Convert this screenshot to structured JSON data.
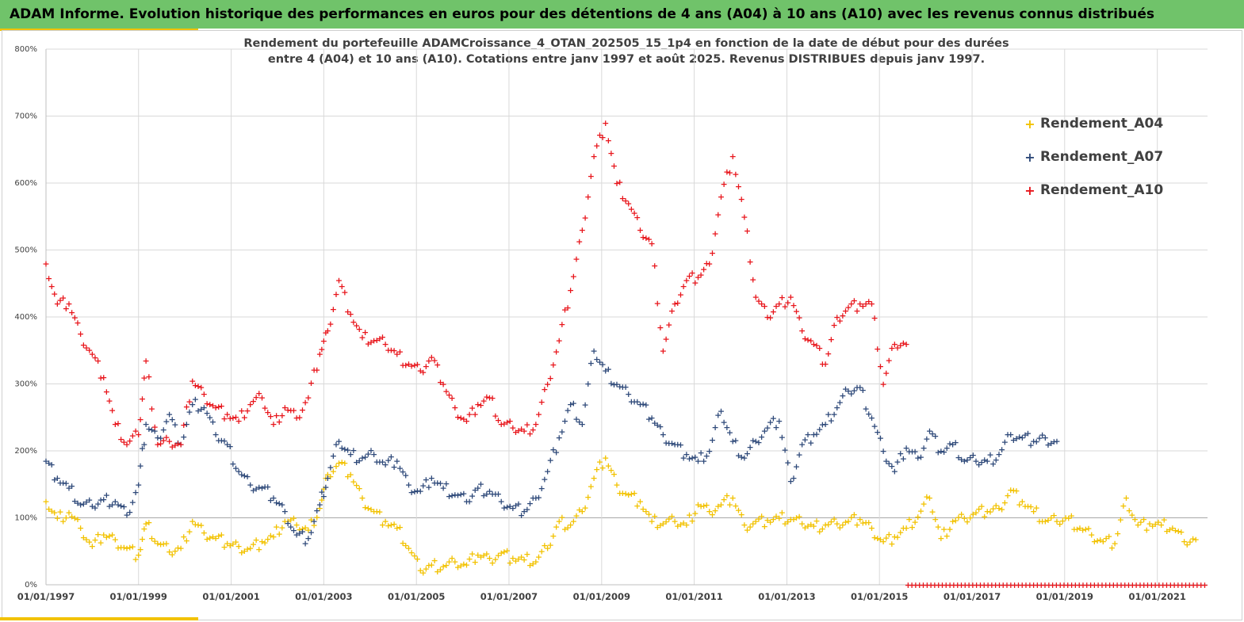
{
  "header": {
    "banner": "ADAM Informe. Evolution historique des performances en euros pour des détentions de 4 ans (A04) à 10 ans (A10) avec les revenus connus distribués"
  },
  "chart_data": {
    "type": "scatter",
    "title_line1": "Rendement du portefeuille ADAMCroissance_4_OTAN_202505_15_1p4  en fonction de la date de début pour des durées",
    "title_line2": "entre 4 (A04) et 10 ans (A10). Cotations entre janv 1997 et août 2025. Revenus DISTRIBUES depuis janv 1997.",
    "xlabel": "",
    "ylabel": "",
    "x_range": [
      "1997-01-01",
      "2022-02-01"
    ],
    "ylim": [
      0,
      800
    ],
    "y_ticks": [
      "0%",
      "100%",
      "200%",
      "300%",
      "400%",
      "500%",
      "600%",
      "700%",
      "800%"
    ],
    "x_ticks": [
      "01/01/1997",
      "01/01/1999",
      "01/01/2001",
      "01/01/2003",
      "01/01/2005",
      "01/01/2007",
      "01/01/2009",
      "01/01/2011",
      "01/01/2013",
      "01/01/2015",
      "01/01/2017",
      "01/01/2019",
      "01/01/2021"
    ],
    "grid": true,
    "legend_position": "right",
    "series": [
      {
        "name": "Rendement_A04",
        "color": "#f2c200",
        "points": [
          [
            "1997-01",
            125
          ],
          [
            "1997-04",
            100
          ],
          [
            "1997-07",
            108
          ],
          [
            "1997-10",
            85
          ],
          [
            "1998-01",
            58
          ],
          [
            "1998-04",
            75
          ],
          [
            "1998-07",
            68
          ],
          [
            "1998-10",
            55
          ],
          [
            "1999-01",
            45
          ],
          [
            "1999-03",
            92
          ],
          [
            "1999-06",
            62
          ],
          [
            "1999-09",
            50
          ],
          [
            "1999-12",
            55
          ],
          [
            "2000-03",
            95
          ],
          [
            "2000-06",
            78
          ],
          [
            "2000-09",
            70
          ],
          [
            "2000-12",
            62
          ],
          [
            "2001-03",
            58
          ],
          [
            "2001-06",
            55
          ],
          [
            "2001-09",
            65
          ],
          [
            "2001-12",
            72
          ],
          [
            "2002-03",
            95
          ],
          [
            "2002-06",
            90
          ],
          [
            "2002-09",
            82
          ],
          [
            "2002-12",
            115
          ],
          [
            "2003-02",
            165
          ],
          [
            "2003-05",
            182
          ],
          [
            "2003-08",
            165
          ],
          [
            "2003-11",
            130
          ],
          [
            "2004-02",
            110
          ],
          [
            "2004-05",
            95
          ],
          [
            "2004-08",
            85
          ],
          [
            "2004-11",
            55
          ],
          [
            "2005-02",
            22
          ],
          [
            "2005-05",
            30
          ],
          [
            "2005-08",
            28
          ],
          [
            "2005-11",
            35
          ],
          [
            "2006-02",
            30
          ],
          [
            "2006-05",
            45
          ],
          [
            "2006-08",
            40
          ],
          [
            "2006-11",
            48
          ],
          [
            "2007-02",
            40
          ],
          [
            "2007-05",
            38
          ],
          [
            "2007-08",
            35
          ],
          [
            "2007-11",
            55
          ],
          [
            "2008-02",
            95
          ],
          [
            "2008-05",
            90
          ],
          [
            "2008-08",
            110
          ],
          [
            "2008-11",
            160
          ],
          [
            "2009-02",
            190
          ],
          [
            "2009-05",
            150
          ],
          [
            "2009-08",
            135
          ],
          [
            "2009-11",
            125
          ],
          [
            "2010-02",
            95
          ],
          [
            "2010-05",
            92
          ],
          [
            "2010-08",
            95
          ],
          [
            "2010-11",
            90
          ],
          [
            "2011-02",
            120
          ],
          [
            "2011-05",
            110
          ],
          [
            "2011-08",
            120
          ],
          [
            "2011-11",
            130
          ],
          [
            "2012-02",
            90
          ],
          [
            "2012-05",
            95
          ],
          [
            "2012-08",
            97
          ],
          [
            "2012-11",
            100
          ],
          [
            "2013-02",
            98
          ],
          [
            "2013-05",
            92
          ],
          [
            "2013-08",
            88
          ],
          [
            "2013-11",
            90
          ],
          [
            "2014-02",
            92
          ],
          [
            "2014-05",
            95
          ],
          [
            "2014-08",
            98
          ],
          [
            "2014-11",
            85
          ],
          [
            "2015-02",
            65
          ],
          [
            "2015-05",
            72
          ],
          [
            "2015-08",
            85
          ],
          [
            "2015-11",
            102
          ],
          [
            "2016-02",
            130
          ],
          [
            "2016-05",
            70
          ],
          [
            "2016-08",
            95
          ],
          [
            "2016-11",
            100
          ],
          [
            "2017-02",
            108
          ],
          [
            "2017-05",
            110
          ],
          [
            "2017-08",
            115
          ],
          [
            "2017-11",
            142
          ],
          [
            "2018-02",
            125
          ],
          [
            "2018-05",
            110
          ],
          [
            "2018-08",
            95
          ],
          [
            "2018-11",
            95
          ],
          [
            "2019-02",
            100
          ],
          [
            "2019-05",
            85
          ],
          [
            "2019-08",
            75
          ],
          [
            "2019-11",
            65
          ],
          [
            "2020-02",
            62
          ],
          [
            "2020-05",
            130
          ],
          [
            "2020-08",
            90
          ],
          [
            "2020-11",
            92
          ],
          [
            "2021-02",
            90
          ],
          [
            "2021-05",
            85
          ],
          [
            "2021-08",
            65
          ],
          [
            "2021-11",
            68
          ]
        ]
      },
      {
        "name": "Rendement_A07",
        "color": "#2f4a7a",
        "points": [
          [
            "1997-01",
            185
          ],
          [
            "1997-04",
            160
          ],
          [
            "1997-07",
            145
          ],
          [
            "1997-10",
            120
          ],
          [
            "1998-01",
            118
          ],
          [
            "1998-04",
            128
          ],
          [
            "1998-07",
            125
          ],
          [
            "1998-10",
            105
          ],
          [
            "1999-01",
            150
          ],
          [
            "1999-03",
            240
          ],
          [
            "1999-06",
            220
          ],
          [
            "1999-09",
            255
          ],
          [
            "1999-12",
            210
          ],
          [
            "2000-03",
            270
          ],
          [
            "2000-06",
            265
          ],
          [
            "2000-09",
            225
          ],
          [
            "2000-12",
            210
          ],
          [
            "2001-03",
            170
          ],
          [
            "2001-06",
            150
          ],
          [
            "2001-09",
            145
          ],
          [
            "2001-12",
            130
          ],
          [
            "2002-03",
            110
          ],
          [
            "2002-06",
            75
          ],
          [
            "2002-09",
            70
          ],
          [
            "2002-12",
            120
          ],
          [
            "2003-02",
            160
          ],
          [
            "2003-05",
            215
          ],
          [
            "2003-08",
            195
          ],
          [
            "2003-11",
            190
          ],
          [
            "2004-02",
            195
          ],
          [
            "2004-05",
            180
          ],
          [
            "2004-08",
            185
          ],
          [
            "2004-11",
            150
          ],
          [
            "2005-02",
            140
          ],
          [
            "2005-05",
            160
          ],
          [
            "2005-08",
            145
          ],
          [
            "2005-11",
            135
          ],
          [
            "2006-02",
            125
          ],
          [
            "2006-05",
            145
          ],
          [
            "2006-08",
            140
          ],
          [
            "2006-11",
            125
          ],
          [
            "2007-02",
            115
          ],
          [
            "2007-05",
            110
          ],
          [
            "2007-08",
            130
          ],
          [
            "2007-11",
            170
          ],
          [
            "2008-02",
            220
          ],
          [
            "2008-05",
            270
          ],
          [
            "2008-08",
            240
          ],
          [
            "2008-11",
            350
          ],
          [
            "2009-02",
            320
          ],
          [
            "2009-05",
            300
          ],
          [
            "2009-08",
            285
          ],
          [
            "2009-11",
            270
          ],
          [
            "2010-02",
            250
          ],
          [
            "2010-05",
            225
          ],
          [
            "2010-08",
            210
          ],
          [
            "2010-11",
            195
          ],
          [
            "2011-02",
            185
          ],
          [
            "2011-05",
            200
          ],
          [
            "2011-08",
            260
          ],
          [
            "2011-11",
            215
          ],
          [
            "2012-02",
            190
          ],
          [
            "2012-05",
            215
          ],
          [
            "2012-08",
            235
          ],
          [
            "2012-11",
            245
          ],
          [
            "2013-02",
            155
          ],
          [
            "2013-05",
            210
          ],
          [
            "2013-08",
            225
          ],
          [
            "2013-11",
            240
          ],
          [
            "2014-02",
            265
          ],
          [
            "2014-05",
            290
          ],
          [
            "2014-08",
            295
          ],
          [
            "2014-11",
            250
          ],
          [
            "2015-02",
            200
          ],
          [
            "2015-05",
            170
          ],
          [
            "2015-08",
            205
          ],
          [
            "2015-11",
            190
          ],
          [
            "2016-02",
            230
          ],
          [
            "2016-05",
            200
          ],
          [
            "2016-08",
            210
          ],
          [
            "2016-11",
            185
          ],
          [
            "2017-02",
            185
          ],
          [
            "2017-05",
            185
          ],
          [
            "2017-08",
            195
          ],
          [
            "2017-11",
            225
          ],
          [
            "2018-02",
            220
          ],
          [
            "2018-05",
            215
          ],
          [
            "2018-08",
            220
          ],
          [
            "2018-11",
            215
          ]
        ]
      },
      {
        "name": "Rendement_A10",
        "color": "#e8161c",
        "points": [
          [
            "1997-01",
            480
          ],
          [
            "1997-04",
            420
          ],
          [
            "1997-07",
            420
          ],
          [
            "1997-10",
            375
          ],
          [
            "1998-01",
            345
          ],
          [
            "1998-04",
            310
          ],
          [
            "1998-07",
            240
          ],
          [
            "1998-10",
            210
          ],
          [
            "1999-01",
            225
          ],
          [
            "1999-03",
            335
          ],
          [
            "1999-06",
            210
          ],
          [
            "1999-09",
            215
          ],
          [
            "1999-12",
            210
          ],
          [
            "2000-03",
            305
          ],
          [
            "2000-06",
            285
          ],
          [
            "2000-09",
            265
          ],
          [
            "2000-12",
            255
          ],
          [
            "2001-03",
            245
          ],
          [
            "2001-06",
            270
          ],
          [
            "2001-09",
            280
          ],
          [
            "2001-12",
            240
          ],
          [
            "2002-03",
            265
          ],
          [
            "2002-06",
            250
          ],
          [
            "2002-09",
            280
          ],
          [
            "2002-12",
            345
          ],
          [
            "2003-02",
            380
          ],
          [
            "2003-05",
            455
          ],
          [
            "2003-08",
            405
          ],
          [
            "2003-11",
            370
          ],
          [
            "2004-02",
            365
          ],
          [
            "2004-05",
            360
          ],
          [
            "2004-08",
            345
          ],
          [
            "2004-11",
            330
          ],
          [
            "2005-02",
            320
          ],
          [
            "2005-05",
            340
          ],
          [
            "2005-08",
            300
          ],
          [
            "2005-11",
            265
          ],
          [
            "2006-02",
            245
          ],
          [
            "2006-05",
            270
          ],
          [
            "2006-08",
            280
          ],
          [
            "2006-11",
            240
          ],
          [
            "2007-02",
            235
          ],
          [
            "2007-05",
            230
          ],
          [
            "2007-08",
            240
          ],
          [
            "2007-11",
            300
          ],
          [
            "2008-02",
            365
          ],
          [
            "2008-05",
            440
          ],
          [
            "2008-08",
            530
          ],
          [
            "2008-11",
            640
          ],
          [
            "2009-02",
            690
          ],
          [
            "2009-05",
            600
          ],
          [
            "2009-08",
            570
          ],
          [
            "2009-11",
            530
          ],
          [
            "2010-02",
            510
          ],
          [
            "2010-05",
            350
          ],
          [
            "2010-08",
            420
          ],
          [
            "2010-11",
            455
          ],
          [
            "2011-02",
            460
          ],
          [
            "2011-05",
            480
          ],
          [
            "2011-08",
            580
          ],
          [
            "2011-11",
            640
          ],
          [
            "2012-02",
            550
          ],
          [
            "2012-05",
            430
          ],
          [
            "2012-08",
            400
          ],
          [
            "2012-11",
            420
          ],
          [
            "2013-02",
            430
          ],
          [
            "2013-05",
            380
          ],
          [
            "2013-08",
            360
          ],
          [
            "2013-11",
            330
          ],
          [
            "2014-02",
            400
          ],
          [
            "2014-05",
            415
          ],
          [
            "2014-08",
            420
          ],
          [
            "2014-11",
            420
          ],
          [
            "2015-02",
            300
          ],
          [
            "2015-05",
            360
          ],
          [
            "2015-08",
            360
          ]
        ]
      }
    ]
  }
}
